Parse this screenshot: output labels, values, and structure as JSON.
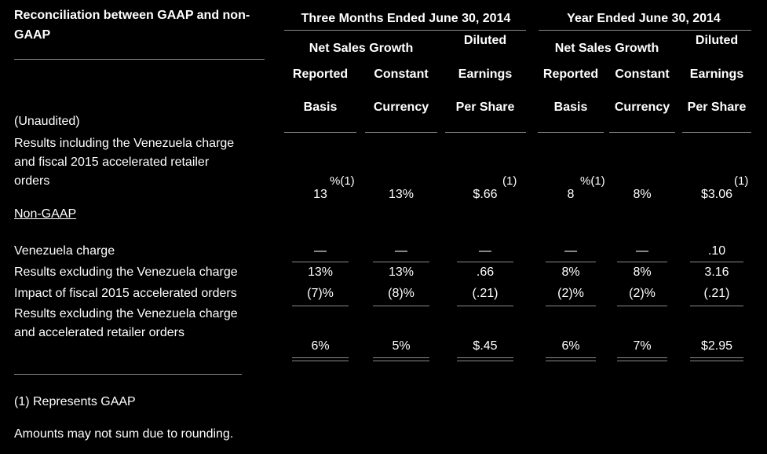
{
  "header": {
    "title": "Reconciliation between GAAP and non-GAAP",
    "unaudited": "(Unaudited)",
    "groups": [
      {
        "title": "Three Months Ended June 30, 2014",
        "growth": "Net Sales Growth",
        "columns": [
          [
            "Reported",
            "Basis"
          ],
          [
            "Constant",
            "Currency"
          ],
          [
            "Diluted",
            "Earnings",
            "Per Share"
          ]
        ]
      },
      {
        "title": "Year Ended June 30, 2014",
        "growth": "Net Sales Growth",
        "columns": [
          [
            "Reported",
            "Basis"
          ],
          [
            "Constant",
            "Currency"
          ],
          [
            "Diluted",
            "Earnings",
            "Per Share"
          ]
        ]
      }
    ]
  },
  "table": {
    "rows": [
      {
        "label": [
          "Results including the Venezuela charge",
          "and fiscal 2015 accelerated retailer",
          "orders"
        ],
        "cells": [
          {
            "text": "13",
            "note": "%(1)"
          },
          "13%",
          {
            "text": "$.66",
            "note": "(1)"
          },
          {
            "text": "8",
            "note": "%(1)"
          },
          "8%",
          {
            "text": "$3.06",
            "note": "(1)"
          }
        ]
      },
      {
        "label": [
          "Non-GAAP"
        ]
      },
      {
        "label": [
          "Venezuela charge"
        ],
        "cells": [
          "—",
          "—",
          "—",
          "—",
          "—",
          ".10"
        ]
      },
      {
        "label": [
          "Results excluding the Venezuela charge"
        ],
        "cells": [
          "13%",
          "13%",
          ".66",
          "8%",
          "8%",
          "3.16"
        ]
      },
      {
        "label": [
          "Impact of fiscal 2015 accelerated orders"
        ],
        "cells": [
          "(7)%",
          "(8)%",
          "(.21)",
          "(2)%",
          "(2)%",
          "(.21)"
        ]
      },
      {
        "label": [
          "Results excluding the Venezuela charge",
          "and accelerated retailer orders"
        ],
        "cells": [
          "6%",
          "5%",
          "$.45",
          "6%",
          "7%",
          "$2.95"
        ]
      }
    ]
  },
  "footnotes": [
    "(1) Represents GAAP",
    "Amounts may not sum due to rounding."
  ]
}
